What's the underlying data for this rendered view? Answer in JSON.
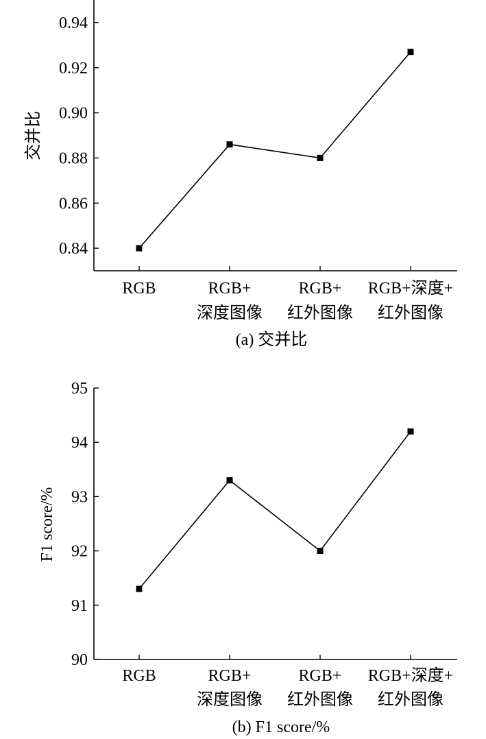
{
  "chart_data": [
    {
      "type": "line",
      "caption": "(a) 交并比",
      "ylabel": "交并比",
      "xlabel": "",
      "categories": [
        [
          "RGB"
        ],
        [
          "RGB+",
          "深度图像"
        ],
        [
          "RGB+",
          "红外图像"
        ],
        [
          "RGB+深度+",
          "红外图像"
        ]
      ],
      "yticks": [
        "0.84",
        "0.86",
        "0.88",
        "0.90",
        "0.92",
        "0.94"
      ],
      "ylim": [
        0.83,
        0.95
      ],
      "series": [
        {
          "values": [
            0.84,
            0.886,
            0.88,
            0.927
          ]
        }
      ],
      "grid": false,
      "marker": "square"
    },
    {
      "type": "line",
      "caption": "(b) F1 score/%",
      "ylabel": "F1 score/%",
      "xlabel": "",
      "categories": [
        [
          "RGB"
        ],
        [
          "RGB+",
          "深度图像"
        ],
        [
          "RGB+",
          "红外图像"
        ],
        [
          "RGB+深度+",
          "红外图像"
        ]
      ],
      "yticks": [
        "90",
        "91",
        "92",
        "93",
        "94",
        "95"
      ],
      "ylim": [
        90,
        95
      ],
      "series": [
        {
          "values": [
            91.3,
            93.3,
            92.0,
            94.2
          ]
        }
      ],
      "grid": false,
      "marker": "square"
    }
  ]
}
